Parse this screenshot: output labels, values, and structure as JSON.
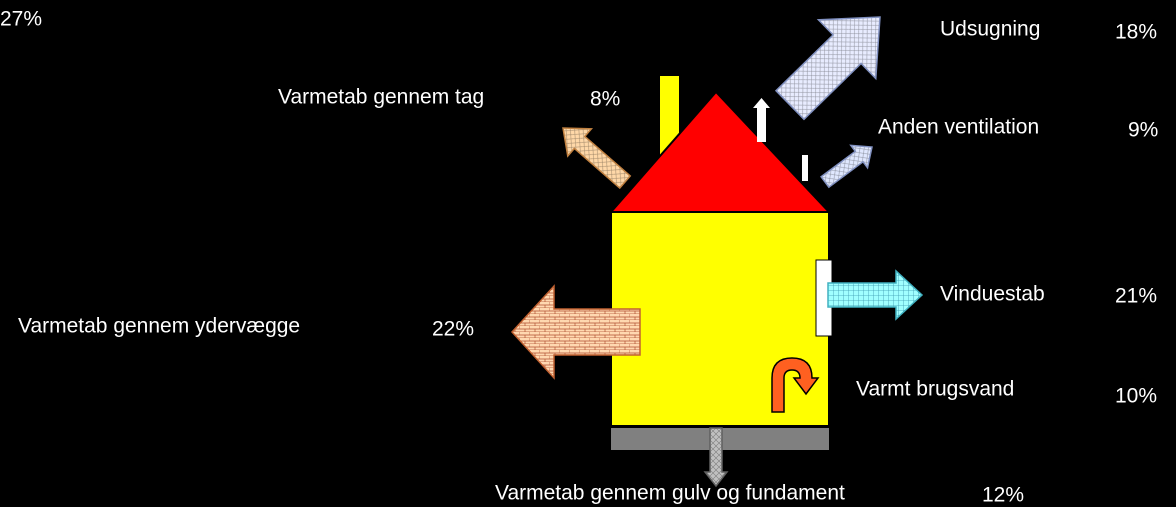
{
  "corner_label": "27%",
  "items": [
    {
      "label": "Udsugning",
      "percent": "18%"
    },
    {
      "label": "Varmetab gennem tag",
      "percent": "8%"
    },
    {
      "label": "Anden ventilation",
      "percent": "9%"
    },
    {
      "label": "Vinduestab",
      "percent": "21%"
    },
    {
      "label": "Varmetab gennem ydervægge",
      "percent": "22%"
    },
    {
      "label": "Varmt brugsvand",
      "percent": "10%"
    },
    {
      "label": "Varmetab gennem gulv og fundament",
      "percent": "12%"
    }
  ]
}
